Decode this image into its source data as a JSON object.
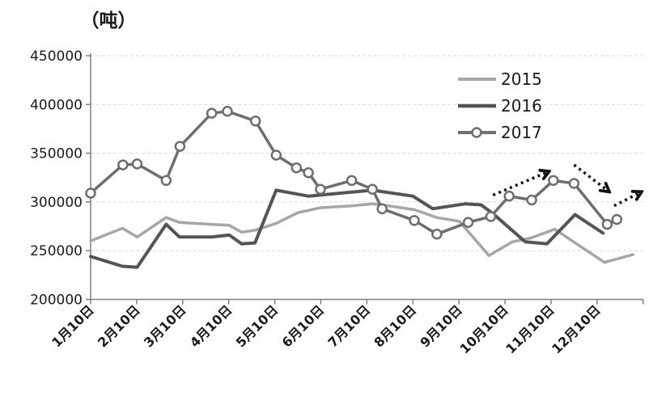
{
  "chart_data": {
    "type": "line",
    "unit_label": "（吨）",
    "x_unit": "months_since_jan10",
    "y_axis": {
      "min": 200000,
      "max": 450000,
      "step": 50000,
      "tick_labels": [
        "200000",
        "250000",
        "300000",
        "350000",
        "400000",
        "450000"
      ]
    },
    "x_axis": {
      "tick_labels": [
        "1月10日",
        "2月10日",
        "3月10日",
        "4月10日",
        "5月10日",
        "6月10日",
        "7月10日",
        "8月10日",
        "9月10日",
        "10月10日",
        "11月10日",
        "12月10日"
      ]
    },
    "legend": {
      "position": "top-right",
      "entries": [
        "2015",
        "2016",
        "2017"
      ]
    },
    "series": [
      {
        "name": "2015",
        "color": "#a6a6a6",
        "width": 3.5,
        "marker": "none",
        "points": [
          [
            0.0,
            260000
          ],
          [
            0.69,
            273000
          ],
          [
            1.01,
            264000
          ],
          [
            1.64,
            284000
          ],
          [
            1.93,
            279000
          ],
          [
            2.63,
            277000
          ],
          [
            3.01,
            276000
          ],
          [
            3.28,
            269000
          ],
          [
            3.57,
            271000
          ],
          [
            4.03,
            278000
          ],
          [
            4.5,
            289000
          ],
          [
            4.99,
            294000
          ],
          [
            5.67,
            296000
          ],
          [
            6.12,
            298000
          ],
          [
            6.33,
            297000
          ],
          [
            7.03,
            292000
          ],
          [
            7.52,
            284000
          ],
          [
            8.01,
            280000
          ],
          [
            8.65,
            245000
          ],
          [
            9.16,
            259000
          ],
          [
            9.56,
            263000
          ],
          [
            10.08,
            272000
          ],
          [
            11.16,
            238000
          ],
          [
            11.78,
            246000
          ]
        ]
      },
      {
        "name": "2016",
        "color": "#545454",
        "width": 4,
        "marker": "none",
        "points": [
          [
            0.0,
            244000
          ],
          [
            0.69,
            234000
          ],
          [
            1.01,
            233000
          ],
          [
            1.64,
            277000
          ],
          [
            1.93,
            264000
          ],
          [
            2.63,
            264000
          ],
          [
            3.01,
            266000
          ],
          [
            3.28,
            257000
          ],
          [
            3.57,
            258000
          ],
          [
            4.03,
            312000
          ],
          [
            4.5,
            308000
          ],
          [
            4.73,
            306000
          ],
          [
            5.67,
            310000
          ],
          [
            6.12,
            312000
          ],
          [
            7.0,
            306000
          ],
          [
            7.43,
            293000
          ],
          [
            8.13,
            298000
          ],
          [
            8.48,
            297000
          ],
          [
            8.74,
            288000
          ],
          [
            9.44,
            259000
          ],
          [
            9.91,
            257000
          ],
          [
            10.52,
            287000
          ],
          [
            11.13,
            268000
          ]
        ]
      },
      {
        "name": "2017",
        "color": "#6e6e6e",
        "width": 3.5,
        "marker": "circle",
        "points": [
          [
            0.0,
            309000
          ],
          [
            0.7,
            338000
          ],
          [
            1.01,
            339000
          ],
          [
            1.64,
            322000
          ],
          [
            1.94,
            357000
          ],
          [
            2.63,
            391000
          ],
          [
            2.97,
            393000
          ],
          [
            3.58,
            383000
          ],
          [
            4.03,
            348000
          ],
          [
            4.47,
            335000
          ],
          [
            4.73,
            330000
          ],
          [
            4.99,
            313000
          ],
          [
            5.67,
            322000
          ],
          [
            6.12,
            313000
          ],
          [
            6.33,
            293000
          ],
          [
            7.03,
            281000
          ],
          [
            7.52,
            267000
          ],
          [
            8.2,
            279000
          ],
          [
            8.69,
            285000
          ],
          [
            9.09,
            306000
          ],
          [
            9.58,
            302000
          ],
          [
            10.05,
            322000
          ],
          [
            10.5,
            319000
          ],
          [
            11.22,
            277000
          ],
          [
            11.43,
            282000
          ]
        ]
      }
    ],
    "trend_arrows": [
      {
        "from": [
          8.74,
          307000
        ],
        "to": [
          9.94,
          331000
        ]
      },
      {
        "from": [
          10.5,
          338000
        ],
        "to": [
          11.25,
          311000
        ]
      },
      {
        "from": [
          11.37,
          296000
        ],
        "to": [
          11.95,
          310000
        ]
      }
    ],
    "style": {
      "gridline_color": "#d9d9d9",
      "axis_color": "#7f7f7f",
      "arrow_color": "#111111",
      "text_color": "#1a1a1a",
      "marker_fill": "#ffffff"
    }
  }
}
